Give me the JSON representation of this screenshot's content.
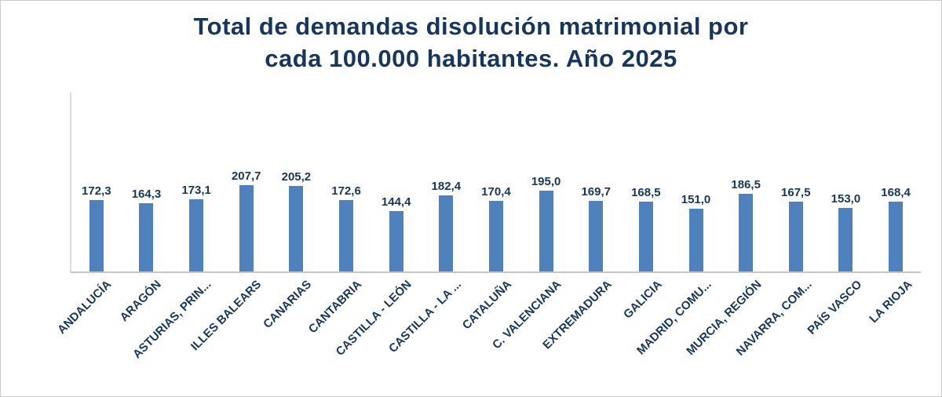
{
  "title": {
    "line1": "Total de demandas disolución matrimonial por",
    "line2": "cada 100.000 habitantes. Año 2025"
  },
  "chart_data": {
    "type": "bar",
    "title": "Total de demandas disolución matrimonial por cada 100.000 habitantes. Año 2025",
    "categories": [
      "ANDALUCÍA",
      "ARAGÓN",
      "ASTURIAS, PRIN...",
      "ILLES BALEARS",
      "CANARIAS",
      "CANTABRIA",
      "CASTILLA - LEÓN",
      "CASTILLA - LA ...",
      "CATALUÑA",
      "C. VALENCIANA",
      "EXTREMADURA",
      "GALICIA",
      "MADRID, COMU...",
      "MURCIA, REGIÓN",
      "NAVARRA, COM...",
      "PAÍS VASCO",
      "LA RIOJA"
    ],
    "values": [
      172.3,
      164.3,
      173.1,
      207.7,
      205.2,
      172.6,
      144.4,
      182.4,
      170.4,
      195.0,
      169.7,
      168.5,
      151.0,
      186.5,
      167.5,
      153.0,
      168.4
    ],
    "value_labels": [
      "172,3",
      "164,3",
      "173,1",
      "207,7",
      "205,2",
      "172,6",
      "144,4",
      "182,4",
      "170,4",
      "195,0",
      "169,7",
      "168,5",
      "151,0",
      "186,5",
      "167,5",
      "153,0",
      "168,4"
    ],
    "xlabel": "",
    "ylabel": "",
    "ylim": [
      0,
      250
    ],
    "grid": false,
    "legend": false,
    "value_labels_position": "above-bars",
    "category_label_rotation_deg": 45,
    "bar_color": "#4f81bd",
    "text_color": "#17365d"
  }
}
